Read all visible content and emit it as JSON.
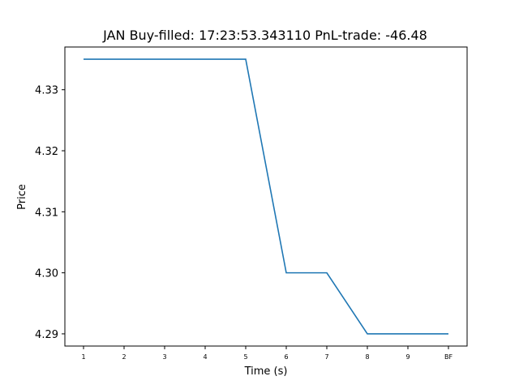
{
  "chart_data": {
    "type": "line",
    "title": "JAN  Buy-filled:  17:23:53.343110  PnL-trade:  -46.48",
    "xlabel": "Time (s)",
    "ylabel": "Price",
    "categories": [
      "1",
      "2",
      "3",
      "4",
      "5",
      "6",
      "7",
      "8",
      "9",
      "BF"
    ],
    "series": [
      {
        "values": [
          4.335,
          4.335,
          4.335,
          4.335,
          4.335,
          4.3,
          4.3,
          4.29,
          4.29,
          4.29
        ],
        "color": "#1f77b4"
      }
    ],
    "ylim": [
      4.288,
      4.337
    ],
    "yticks": [
      "4.29",
      "4.30",
      "4.31",
      "4.32",
      "4.33"
    ],
    "grid": false
  }
}
